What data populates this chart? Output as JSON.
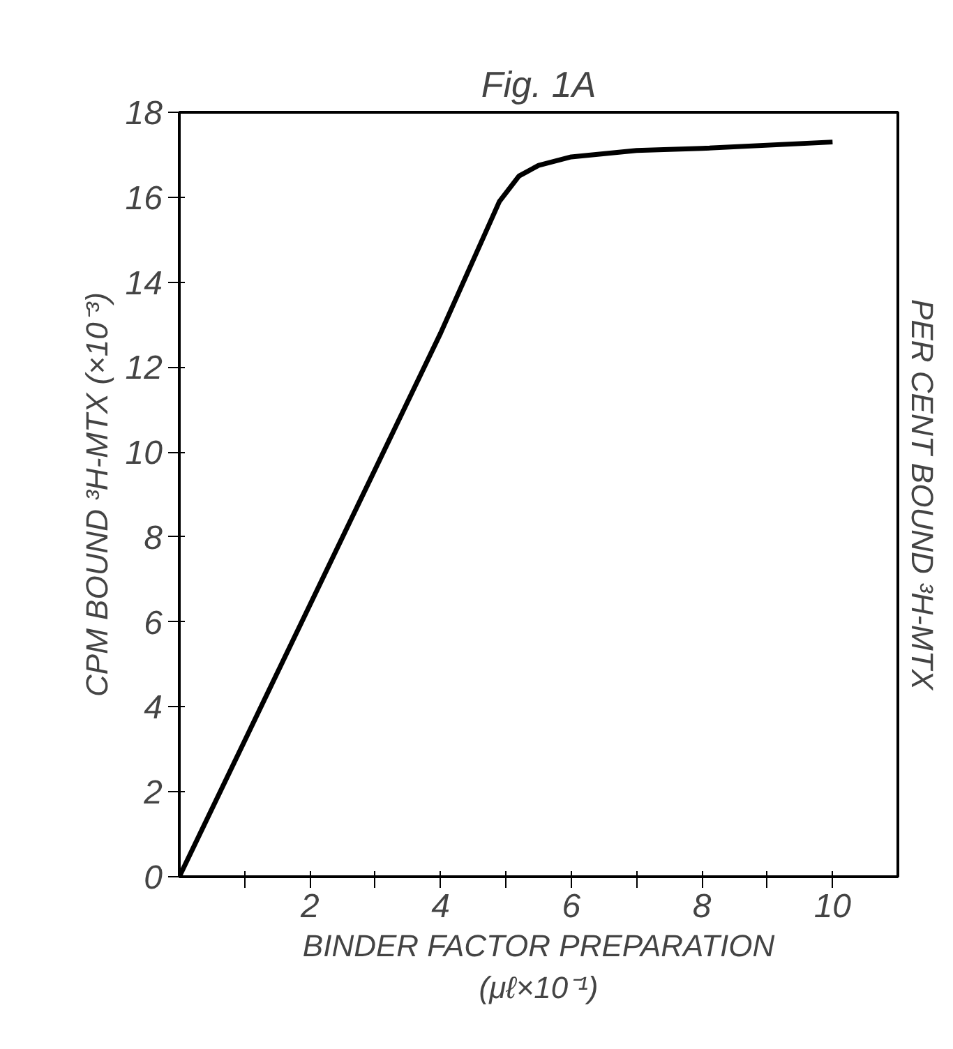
{
  "chart_data": {
    "type": "line",
    "title": "Fig. 1A",
    "xlabel": "BINDER FACTOR PREPARATION\n(μℓ×10⁻¹)",
    "ylabel": "CPM BOUND ³H-MTX (×10⁻³)",
    "annotations": [
      "PER CENT BOUND ³H-MTX"
    ],
    "x": [
      0,
      1,
      2,
      3,
      4,
      4.9,
      5.2,
      5.5,
      6,
      7,
      8,
      10
    ],
    "series": [
      {
        "color": "#000000",
        "values": [
          0,
          3.2,
          6.4,
          9.6,
          12.8,
          15.9,
          16.5,
          16.75,
          16.95,
          17.1,
          17.15,
          17.3
        ]
      }
    ],
    "xlim": [
      0,
      11
    ],
    "xticks": [
      {
        "value": 1,
        "label": null
      },
      2,
      {
        "value": 3,
        "label": null
      },
      4,
      {
        "value": 5,
        "label": null
      },
      6,
      {
        "value": 7,
        "label": null
      },
      8,
      {
        "value": 9,
        "label": null
      },
      10
    ],
    "ylim": [
      0,
      18
    ],
    "yticks": [
      0,
      2,
      4,
      6,
      8,
      10,
      12,
      14,
      16,
      18
    ],
    "grid": false,
    "marker": "none",
    "line_style": "solid"
  }
}
